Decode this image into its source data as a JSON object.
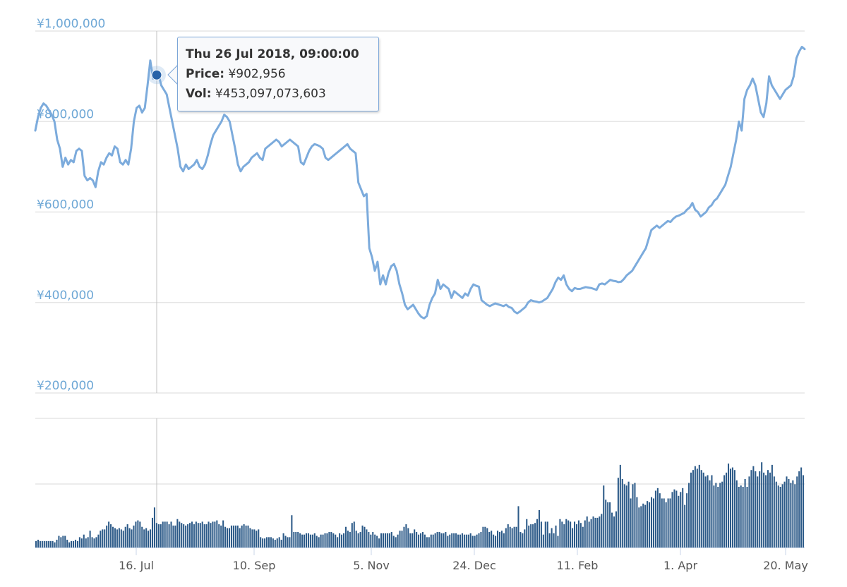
{
  "chart_data": {
    "type": "line",
    "title": "",
    "currency_symbol": "¥",
    "price_panel": {
      "series_name": "Price",
      "ylabel": "",
      "ylim": [
        200000,
        1000000
      ],
      "y_ticks": [
        "¥1,000,000",
        "¥800,000",
        "¥600,000",
        "¥400,000",
        "¥200,000"
      ],
      "y_tick_values": [
        1000000,
        800000,
        600000,
        400000,
        200000
      ],
      "grid": true,
      "line_color": "#7cabdc",
      "values": [
        780000,
        810000,
        830000,
        840000,
        835000,
        825000,
        815000,
        800000,
        760000,
        740000,
        700000,
        720000,
        705000,
        715000,
        710000,
        735000,
        740000,
        735000,
        680000,
        670000,
        675000,
        670000,
        655000,
        690000,
        710000,
        705000,
        720000,
        730000,
        725000,
        745000,
        740000,
        710000,
        705000,
        715000,
        705000,
        740000,
        800000,
        830000,
        835000,
        820000,
        830000,
        880000,
        935000,
        895000,
        905000,
        905000,
        880000,
        870000,
        860000,
        830000,
        800000,
        770000,
        740000,
        700000,
        690000,
        705000,
        695000,
        700000,
        705000,
        715000,
        700000,
        695000,
        705000,
        725000,
        750000,
        770000,
        780000,
        790000,
        800000,
        815000,
        810000,
        800000,
        770000,
        740000,
        705000,
        690000,
        700000,
        705000,
        710000,
        720000,
        725000,
        730000,
        720000,
        715000,
        740000,
        745000,
        750000,
        755000,
        760000,
        755000,
        745000,
        750000,
        755000,
        760000,
        755000,
        750000,
        745000,
        710000,
        705000,
        720000,
        735000,
        745000,
        750000,
        748000,
        745000,
        740000,
        720000,
        715000,
        720000,
        725000,
        730000,
        735000,
        740000,
        745000,
        750000,
        740000,
        735000,
        730000,
        665000,
        650000,
        635000,
        640000,
        520000,
        500000,
        470000,
        490000,
        440000,
        460000,
        440000,
        465000,
        480000,
        485000,
        470000,
        440000,
        420000,
        395000,
        385000,
        390000,
        395000,
        385000,
        375000,
        368000,
        365000,
        370000,
        395000,
        410000,
        420000,
        450000,
        430000,
        440000,
        435000,
        430000,
        410000,
        425000,
        420000,
        415000,
        410000,
        420000,
        415000,
        430000,
        440000,
        437000,
        435000,
        405000,
        400000,
        395000,
        392000,
        395000,
        398000,
        396000,
        394000,
        392000,
        395000,
        390000,
        388000,
        380000,
        376000,
        380000,
        385000,
        390000,
        400000,
        405000,
        403000,
        402000,
        400000,
        402000,
        406000,
        410000,
        420000,
        430000,
        445000,
        455000,
        450000,
        460000,
        440000,
        430000,
        425000,
        432000,
        430000,
        430000,
        432000,
        434000,
        433000,
        432000,
        430000,
        428000,
        440000,
        442000,
        440000,
        445000,
        450000,
        448000,
        447000,
        445000,
        446000,
        452000,
        460000,
        465000,
        470000,
        480000,
        490000,
        500000,
        510000,
        520000,
        540000,
        560000,
        565000,
        570000,
        565000,
        570000,
        575000,
        580000,
        578000,
        585000,
        590000,
        592000,
        595000,
        598000,
        605000,
        610000,
        620000,
        605000,
        600000,
        590000,
        595000,
        600000,
        610000,
        615000,
        625000,
        630000,
        640000,
        650000,
        660000,
        680000,
        700000,
        730000,
        760000,
        800000,
        780000,
        850000,
        870000,
        880000,
        895000,
        880000,
        850000,
        820000,
        810000,
        840000,
        900000,
        880000,
        870000,
        860000,
        850000,
        860000,
        870000,
        875000,
        880000,
        900000,
        940000,
        955000,
        965000,
        960000
      ],
      "hover_index_date": "Thu 26 Jul 2018, 09:00:00"
    },
    "volume_panel": {
      "series_name": "Vol",
      "bar_color": "#2c5a88",
      "grid": true,
      "values": [
        5,
        6,
        5,
        5,
        5,
        5,
        5,
        5,
        5,
        4,
        6,
        9,
        8,
        9,
        9,
        6,
        4,
        5,
        5,
        6,
        5,
        8,
        7,
        10,
        7,
        8,
        13,
        8,
        7,
        8,
        10,
        13,
        14,
        14,
        17,
        20,
        18,
        16,
        15,
        14,
        15,
        14,
        13,
        16,
        18,
        15,
        14,
        17,
        20,
        21,
        20,
        16,
        14,
        15,
        13,
        14,
        23,
        31,
        19,
        18,
        18,
        20,
        20,
        20,
        18,
        20,
        17,
        17,
        22,
        20,
        19,
        18,
        17,
        18,
        19,
        20,
        18,
        20,
        19,
        19,
        20,
        18,
        18,
        20,
        19,
        20,
        20,
        21,
        18,
        17,
        21,
        16,
        15,
        15,
        17,
        17,
        17,
        17,
        15,
        17,
        18,
        17,
        17,
        15,
        14,
        14,
        13,
        14,
        8,
        7,
        7,
        8,
        8,
        8,
        7,
        6,
        7,
        8,
        6,
        11,
        9,
        8,
        8,
        25,
        12,
        12,
        12,
        11,
        10,
        10,
        11,
        11,
        10,
        10,
        11,
        9,
        8,
        10,
        10,
        11,
        11,
        12,
        12,
        11,
        10,
        8,
        11,
        10,
        11,
        16,
        13,
        12,
        19,
        20,
        13,
        11,
        12,
        17,
        16,
        14,
        12,
        10,
        12,
        10,
        9,
        7,
        11,
        11,
        11,
        11,
        11,
        12,
        9,
        8,
        10,
        13,
        13,
        16,
        18,
        15,
        11,
        11,
        14,
        12,
        10,
        11,
        12,
        10,
        8,
        8,
        10,
        10,
        11,
        12,
        12,
        11,
        11,
        12,
        9,
        10,
        11,
        11,
        11,
        10,
        10,
        11,
        10,
        10,
        10,
        11,
        9,
        9,
        10,
        11,
        12,
        16,
        16,
        15,
        12,
        13,
        10,
        9,
        13,
        12,
        13,
        11,
        15,
        18,
        16,
        15,
        16,
        16,
        32,
        12,
        11,
        14,
        22,
        17,
        18,
        18,
        19,
        22,
        29,
        20,
        10,
        20,
        20,
        11,
        15,
        11,
        17,
        9,
        22,
        20,
        18,
        22,
        21,
        20,
        15,
        20,
        18,
        21,
        19,
        16,
        21,
        24,
        20,
        22,
        24,
        23,
        23,
        24,
        26,
        48,
        37,
        35,
        35,
        27,
        24,
        28,
        54,
        64,
        53,
        49,
        48,
        51,
        38,
        49,
        50,
        39,
        31,
        32,
        34,
        33,
        36,
        35,
        39,
        38,
        44,
        46,
        42,
        38,
        38,
        35,
        38,
        38,
        43,
        45,
        44,
        40,
        43,
        46,
        33,
        42,
        50,
        58,
        60,
        63,
        61,
        64,
        60,
        58,
        55,
        56,
        52,
        56,
        48,
        50,
        47,
        50,
        51,
        56,
        58,
        65,
        61,
        62,
        60,
        52,
        47,
        48,
        47,
        53,
        47,
        55,
        60,
        63,
        59,
        55,
        59,
        66,
        58,
        56,
        60,
        58,
        64,
        55,
        51,
        48,
        47,
        49,
        51,
        55,
        53,
        50,
        52,
        49,
        55,
        59,
        62,
        56
      ],
      "ylim": [
        0,
        100
      ]
    },
    "x_axis": {
      "ticks": [
        "16. Jul",
        "10. Sep",
        "5. Nov",
        "24. Dec",
        "11. Feb",
        "1. Apr",
        "20. May"
      ],
      "tick_x": [
        193,
        360,
        526,
        672,
        818,
        964,
        1113
      ],
      "range": [
        "May 2018",
        "May 2019"
      ]
    },
    "crosshair_x": 222,
    "hover_point": {
      "price": 902956,
      "date": "Thu 26 Jul 2018, 09:00:00"
    }
  },
  "tooltip": {
    "title": "Thu 26 Jul 2018, 09:00:00",
    "price_label": "Price:",
    "price_value": "¥902,956",
    "vol_label": "Vol:",
    "vol_value": "¥453,097,073,603"
  },
  "colors": {
    "price_line": "#7cabdc",
    "volume_bar": "#2c5a88",
    "hover_marker": "#2762a8",
    "axis_label_y": "#6fa8d6",
    "axis_label_x": "#555555",
    "grid": "#e6e6e6",
    "crosshair": "#c0c0c0"
  }
}
